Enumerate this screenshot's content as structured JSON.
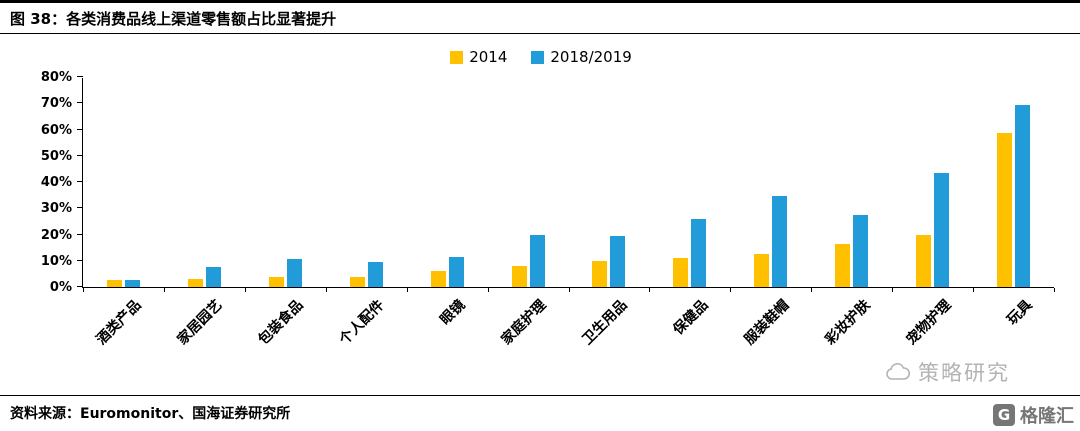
{
  "header": {
    "title": "图 38：各类消费品线上渠道零售额占比显著提升"
  },
  "chart_data": {
    "type": "bar",
    "title": "各类消费品线上渠道零售额占比显著提升",
    "categories": [
      "酒类产品",
      "家居园艺",
      "包装食品",
      "个人配件",
      "眼镜",
      "家庭护理",
      "卫生用品",
      "保健品",
      "服装鞋帽",
      "彩妆护肤",
      "宠物护理",
      "玩具"
    ],
    "series": [
      {
        "name": "2014",
        "color": "#FFC000",
        "values": [
          2.5,
          3,
          4,
          4,
          6,
          8,
          10,
          11,
          12.5,
          16.5,
          20,
          58.5
        ]
      },
      {
        "name": "2018/2019",
        "color": "#219CD8",
        "values": [
          2.5,
          7.5,
          10.5,
          9.5,
          11.5,
          20,
          19.5,
          26,
          34.5,
          27.5,
          43.5,
          69.5
        ]
      }
    ],
    "xlabel": "",
    "ylabel": "",
    "ylim": [
      0,
      80
    ],
    "ytick_step": 10,
    "ytick_suffix": "%",
    "grid": false,
    "legend_position": "top-center"
  },
  "footer": {
    "source": "资料来源：Euromonitor、国海证券研究所"
  },
  "watermark": {
    "text": "策略研究"
  },
  "logo": {
    "letter": "G",
    "text": "格隆汇"
  }
}
